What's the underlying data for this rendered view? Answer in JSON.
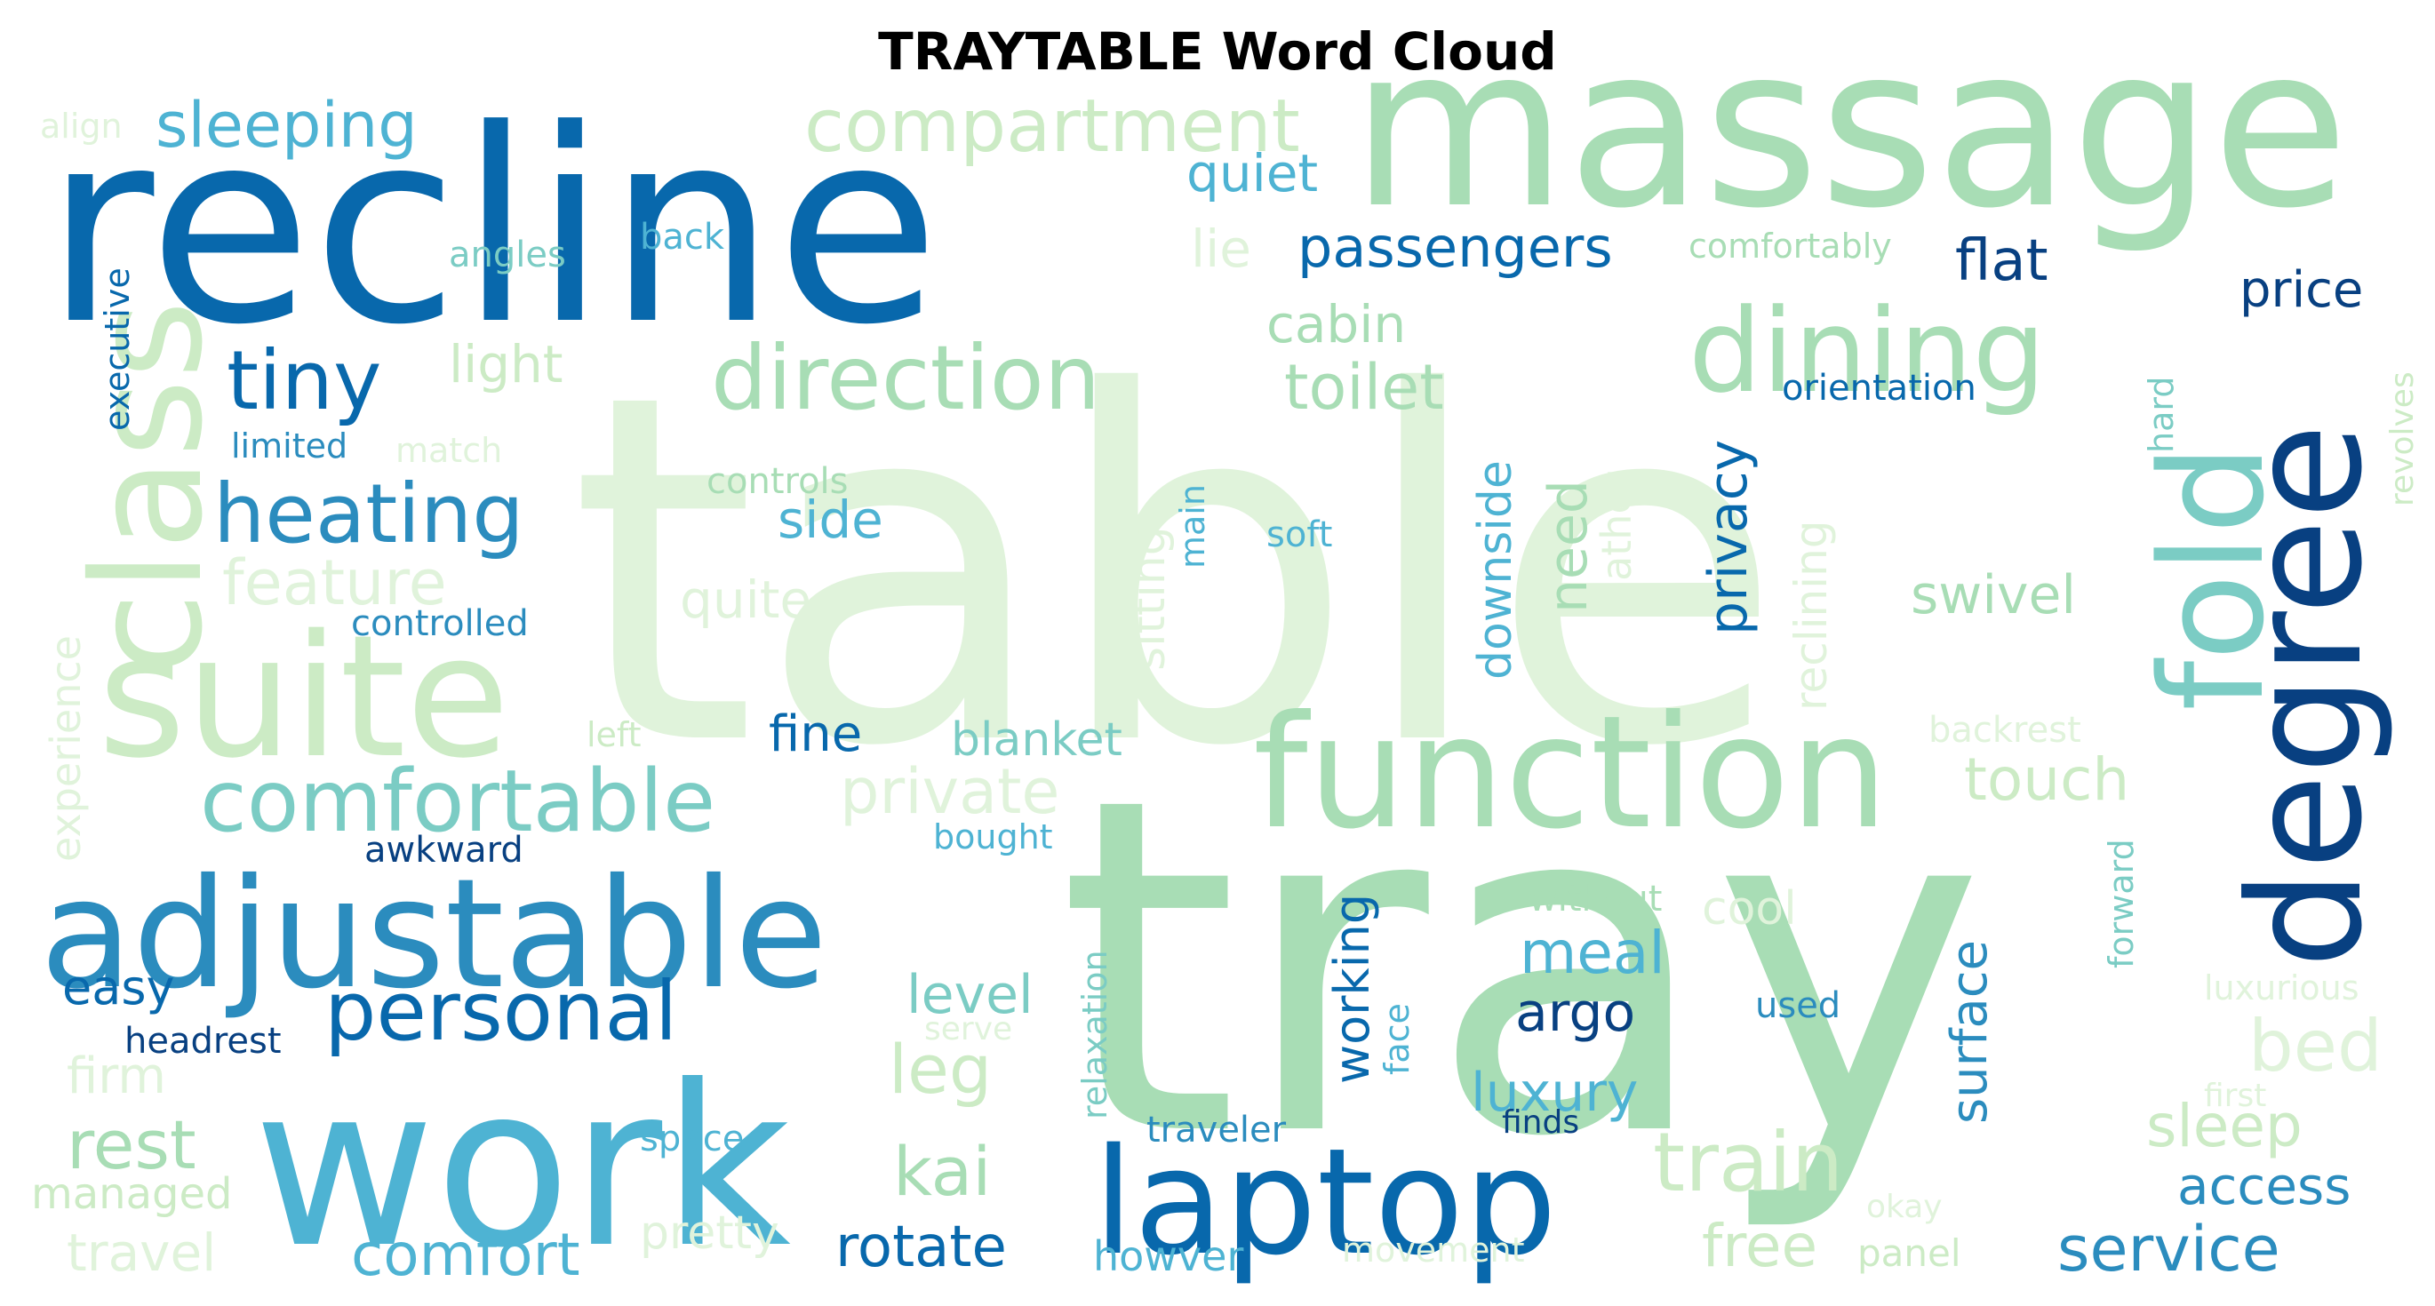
{
  "title": "TRAYTABLE Word Cloud",
  "palette": [
    "#084081",
    "#0868ac",
    "#2b8cbe",
    "#4eb3d3",
    "#7bccc4",
    "#a8ddb5",
    "#ccebc5",
    "#e0f3db"
  ],
  "words": [
    {
      "text": "table",
      "color": "#e0f3db"
    },
    {
      "text": "tray",
      "color": "#a8ddb5"
    },
    {
      "text": "recline",
      "color": "#0868ac"
    },
    {
      "text": "massage",
      "color": "#a8ddb5"
    },
    {
      "text": "work",
      "color": "#4eb3d3"
    },
    {
      "text": "adjustable",
      "color": "#2b8cbe"
    },
    {
      "text": "suite",
      "color": "#ccebc5"
    },
    {
      "text": "function",
      "color": "#a8ddb5"
    },
    {
      "text": "degree",
      "color": "#084081"
    },
    {
      "text": "laptop",
      "color": "#0868ac"
    },
    {
      "text": "class",
      "color": "#ccebc5"
    },
    {
      "text": "fold",
      "color": "#7bccc4"
    },
    {
      "text": "dining",
      "color": "#a8ddb5"
    },
    {
      "text": "compartment",
      "color": "#ccebc5"
    },
    {
      "text": "direction",
      "color": "#a8ddb5"
    },
    {
      "text": "comfortable",
      "color": "#7bccc4"
    },
    {
      "text": "personal",
      "color": "#0868ac"
    },
    {
      "text": "heating",
      "color": "#2b8cbe"
    },
    {
      "text": "tiny",
      "color": "#0868ac"
    },
    {
      "text": "train",
      "color": "#ccebc5"
    },
    {
      "text": "sleeping",
      "color": "#4eb3d3"
    },
    {
      "text": "toilet",
      "color": "#a8ddb5"
    },
    {
      "text": "passengers",
      "color": "#0868ac"
    },
    {
      "text": "quiet",
      "color": "#4eb3d3"
    },
    {
      "text": "comfort",
      "color": "#4eb3d3"
    },
    {
      "text": "rotate",
      "color": "#0868ac"
    },
    {
      "text": "service",
      "color": "#2b8cbe"
    },
    {
      "text": "kai",
      "color": "#a8ddb5"
    },
    {
      "text": "bed",
      "color": "#e0f3db"
    },
    {
      "text": "rest",
      "color": "#a8ddb5"
    },
    {
      "text": "leg",
      "color": "#ccebc5"
    },
    {
      "text": "meal",
      "color": "#4eb3d3"
    },
    {
      "text": "luxury",
      "color": "#4eb3d3"
    },
    {
      "text": "argo",
      "color": "#084081"
    },
    {
      "text": "free",
      "color": "#ccebc5"
    },
    {
      "text": "access",
      "color": "#2b8cbe"
    },
    {
      "text": "private",
      "color": "#e0f3db"
    },
    {
      "text": "feature",
      "color": "#e0f3db"
    },
    {
      "text": "blanket",
      "color": "#7bccc4"
    },
    {
      "text": "fine",
      "color": "#0868ac"
    },
    {
      "text": "touch",
      "color": "#ccebc5"
    },
    {
      "text": "swivel",
      "color": "#a8ddb5"
    },
    {
      "text": "level",
      "color": "#7bccc4"
    },
    {
      "text": "easy",
      "color": "#0868ac"
    },
    {
      "text": "sleep",
      "color": "#ccebc5"
    },
    {
      "text": "flat",
      "color": "#084081"
    },
    {
      "text": "price",
      "color": "#084081"
    },
    {
      "text": "cabin",
      "color": "#a8ddb5"
    },
    {
      "text": "side",
      "color": "#4eb3d3"
    },
    {
      "text": "light",
      "color": "#ccebc5"
    },
    {
      "text": "lie",
      "color": "#e0f3db"
    },
    {
      "text": "quite",
      "color": "#e0f3db"
    },
    {
      "text": "travel",
      "color": "#e0f3db"
    },
    {
      "text": "pretty",
      "color": "#e0f3db"
    },
    {
      "text": "firm",
      "color": "#e0f3db"
    },
    {
      "text": "cool",
      "color": "#e0f3db"
    },
    {
      "text": "managed",
      "color": "#ccebc5"
    },
    {
      "text": "howver",
      "color": "#4eb3d3"
    },
    {
      "text": "headrest",
      "color": "#084081"
    },
    {
      "text": "awkward",
      "color": "#084081"
    },
    {
      "text": "bought",
      "color": "#4eb3d3"
    },
    {
      "text": "without",
      "color": "#a8ddb5"
    },
    {
      "text": "used",
      "color": "#2b8cbe"
    },
    {
      "text": "finds",
      "color": "#084081"
    },
    {
      "text": "traveler",
      "color": "#2b8cbe"
    },
    {
      "text": "space",
      "color": "#4eb3d3"
    },
    {
      "text": "movement",
      "color": "#e0f3db"
    },
    {
      "text": "panel",
      "color": "#ccebc5"
    },
    {
      "text": "okay",
      "color": "#e0f3db"
    },
    {
      "text": "first",
      "color": "#e0f3db"
    },
    {
      "text": "luxurious",
      "color": "#e0f3db"
    },
    {
      "text": "serve",
      "color": "#e0f3db"
    },
    {
      "text": "backrest",
      "color": "#e0f3db"
    },
    {
      "text": "left",
      "color": "#ccebc5"
    },
    {
      "text": "controlled",
      "color": "#2b8cbe"
    },
    {
      "text": "soft",
      "color": "#4eb3d3"
    },
    {
      "text": "controls",
      "color": "#a8ddb5"
    },
    {
      "text": "limited",
      "color": "#2b8cbe"
    },
    {
      "text": "match",
      "color": "#e0f3db"
    },
    {
      "text": "angles",
      "color": "#7bccc4"
    },
    {
      "text": "back",
      "color": "#4eb3d3"
    },
    {
      "text": "align",
      "color": "#e0f3db"
    },
    {
      "text": "comfortably",
      "color": "#a8ddb5"
    },
    {
      "text": "orientation",
      "color": "#0868ac"
    },
    {
      "text": "executive",
      "color": "#0868ac"
    },
    {
      "text": "experience",
      "color": "#e0f3db"
    },
    {
      "text": "sitting",
      "color": "#e0f3db"
    },
    {
      "text": "main",
      "color": "#4eb3d3"
    },
    {
      "text": "downside",
      "color": "#4eb3d3"
    },
    {
      "text": "need",
      "color": "#a8ddb5"
    },
    {
      "text": "leather",
      "color": "#e0f3db"
    },
    {
      "text": "privacy",
      "color": "#0868ac"
    },
    {
      "text": "reclining",
      "color": "#e0f3db"
    },
    {
      "text": "hard",
      "color": "#7bccc4"
    },
    {
      "text": "revolves",
      "color": "#ccebc5"
    },
    {
      "text": "forward",
      "color": "#7bccc4"
    },
    {
      "text": "working",
      "color": "#0868ac"
    },
    {
      "text": "face",
      "color": "#4eb3d3"
    },
    {
      "text": "relaxation",
      "color": "#7bccc4"
    },
    {
      "text": "surface",
      "color": "#2b8cbe"
    }
  ]
}
